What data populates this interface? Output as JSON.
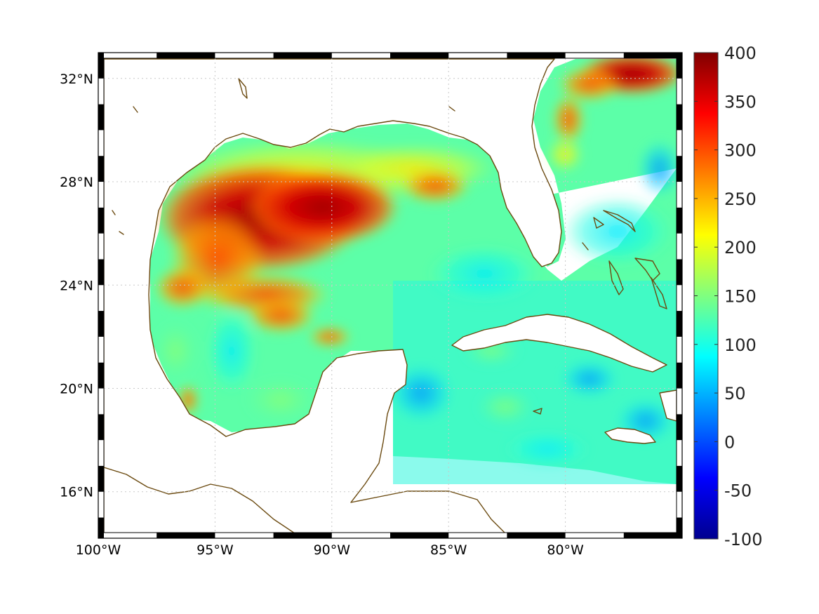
{
  "map": {
    "projection": "equirectangular",
    "lon_range": [
      -100,
      -75
    ],
    "lat_range": [
      14.2,
      33
    ],
    "lon_ticks": [
      {
        "value": -100,
        "label": "100°W"
      },
      {
        "value": -95,
        "label": "95°W"
      },
      {
        "value": -90,
        "label": "90°W"
      },
      {
        "value": -85,
        "label": "85°W"
      },
      {
        "value": -80,
        "label": "80°W"
      }
    ],
    "lat_ticks": [
      {
        "value": 16,
        "label": "16°N"
      },
      {
        "value": 20,
        "label": "20°N"
      },
      {
        "value": 24,
        "label": "24°N"
      },
      {
        "value": 28,
        "label": "28°N"
      },
      {
        "value": 32,
        "label": "32°N"
      }
    ],
    "grid": true,
    "coastline_color": "#6b4a10",
    "frame_style": "black-white alternating border"
  },
  "colorbar": {
    "min": -100,
    "max": 400,
    "colormap": "jet",
    "ticks": [
      {
        "value": 400,
        "label": "400"
      },
      {
        "value": 350,
        "label": "350"
      },
      {
        "value": 300,
        "label": "300"
      },
      {
        "value": 250,
        "label": "250"
      },
      {
        "value": 200,
        "label": "200"
      },
      {
        "value": 150,
        "label": "150"
      },
      {
        "value": 100,
        "label": "100"
      },
      {
        "value": 50,
        "label": "50"
      },
      {
        "value": 0,
        "label": "0"
      },
      {
        "value": -50,
        "label": "-50"
      },
      {
        "value": -100,
        "label": "-100"
      }
    ]
  }
}
